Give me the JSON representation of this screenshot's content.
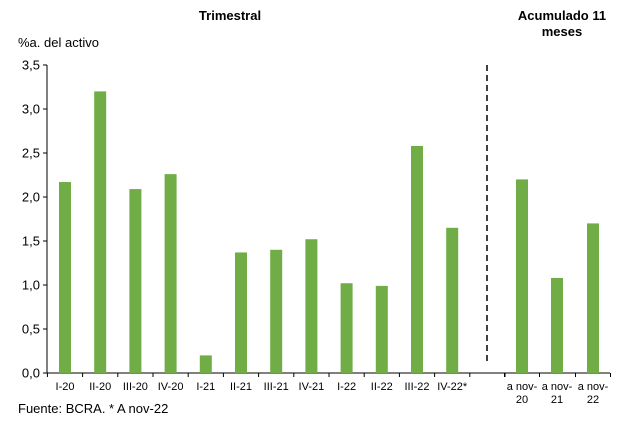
{
  "chart_data": {
    "type": "bar",
    "title": "",
    "ylabel": "%a. del activo",
    "xlabel": "",
    "ylim": [
      0,
      3.5
    ],
    "yticks": [
      "0,0",
      "0,5",
      "1,0",
      "1,5",
      "2,0",
      "2,5",
      "3,0",
      "3,5"
    ],
    "bar_color": "#70ad47",
    "grid": false,
    "groups": [
      {
        "header": "Trimestral",
        "categories": [
          "I-20",
          "II-20",
          "III-20",
          "IV-20",
          "I-21",
          "II-21",
          "III-21",
          "IV-21",
          "I-22",
          "II-22",
          "III-22",
          "IV-22*"
        ],
        "values": [
          2.17,
          3.2,
          2.09,
          2.26,
          0.2,
          1.37,
          1.4,
          1.52,
          1.02,
          0.99,
          2.58,
          1.65
        ]
      },
      {
        "header_lines": [
          "Acumulado 11",
          "meses"
        ],
        "categories": [
          [
            "a nov-",
            "20"
          ],
          [
            "a nov-",
            "21"
          ],
          [
            "a nov-",
            "22"
          ]
        ],
        "values": [
          2.2,
          1.08,
          1.7
        ]
      }
    ],
    "source": "Fuente: BCRA. * A nov-22"
  }
}
